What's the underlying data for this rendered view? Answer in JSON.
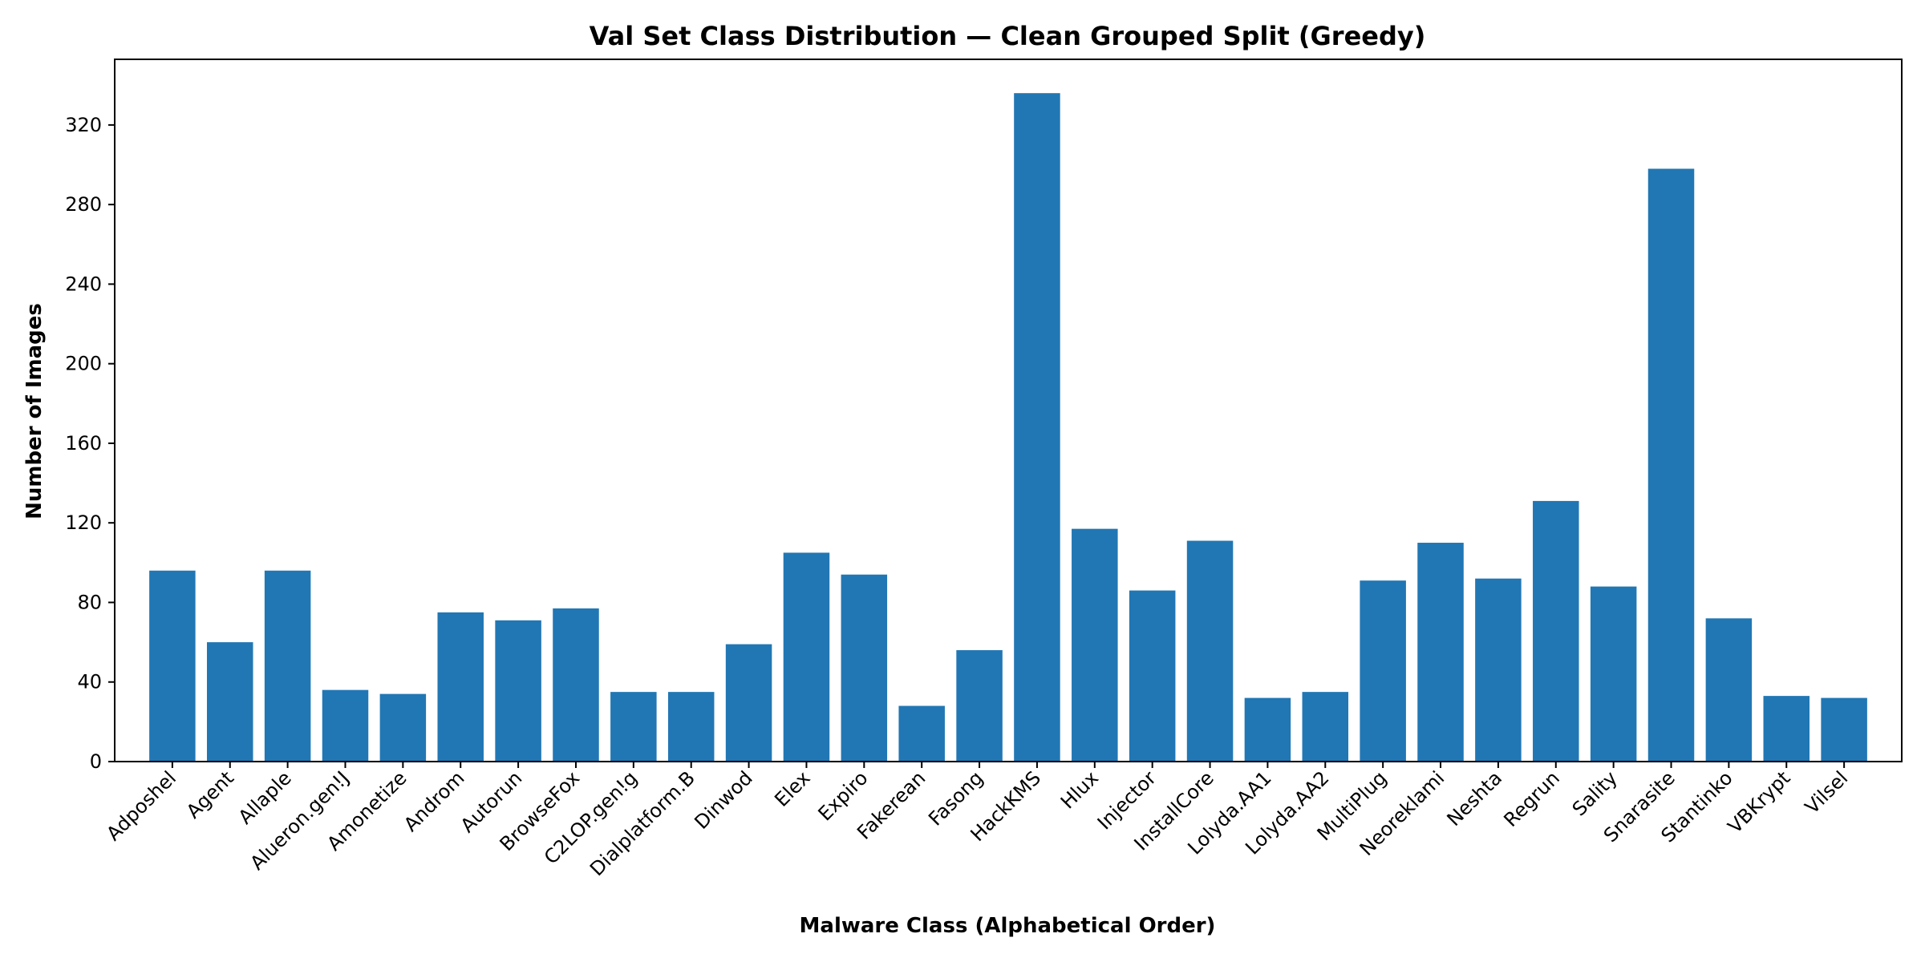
{
  "chart_data": {
    "type": "bar",
    "title": "Val Set Class Distribution — Clean Grouped Split (Greedy)",
    "xlabel": "Malware Class (Alphabetical Order)",
    "ylabel": "Number of Images",
    "categories": [
      "Adposhel",
      "Agent",
      "Allaple",
      "Alueron.gen!J",
      "Amonetize",
      "Androm",
      "Autorun",
      "BrowseFox",
      "C2LOP.gen!g",
      "Dialplatform.B",
      "Dinwod",
      "Elex",
      "Expiro",
      "Fakerean",
      "Fasong",
      "HackKMS",
      "Hlux",
      "Injector",
      "InstallCore",
      "Lolyda.AA1",
      "Lolyda.AA2",
      "MultiPlug",
      "Neoreklami",
      "Neshta",
      "Regrun",
      "Sality",
      "Snarasite",
      "Stantinko",
      "VBKrypt",
      "Vilsel"
    ],
    "values": [
      96,
      60,
      96,
      36,
      34,
      75,
      71,
      77,
      35,
      35,
      59,
      105,
      94,
      28,
      56,
      336,
      117,
      86,
      111,
      32,
      35,
      91,
      110,
      92,
      131,
      88,
      298,
      72,
      33,
      32
    ],
    "yticks": [
      0,
      40,
      80,
      120,
      160,
      200,
      240,
      280,
      320
    ],
    "ylim": [
      0,
      353
    ],
    "grid": false,
    "colors": {
      "bar": "#2177b4"
    }
  }
}
